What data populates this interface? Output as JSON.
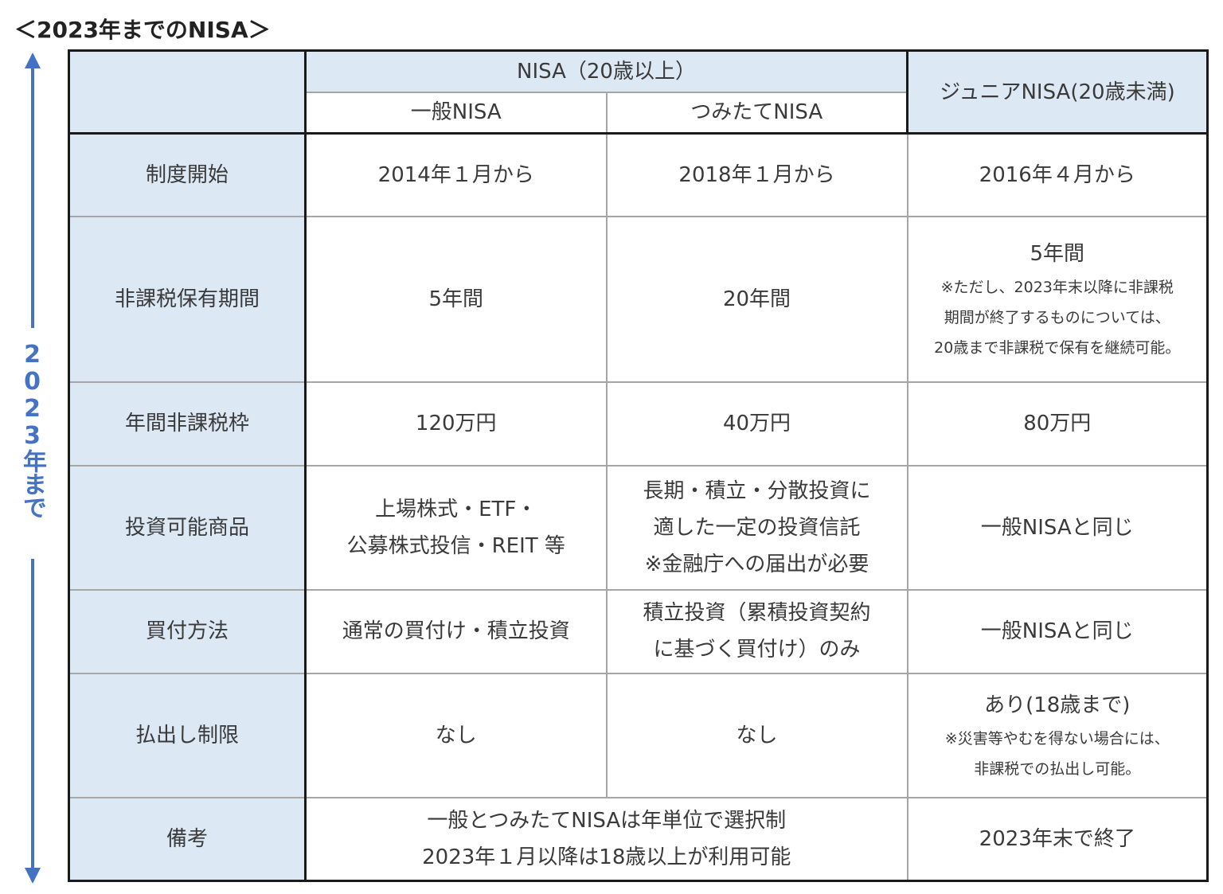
{
  "title": "＜2023年までのNISA＞",
  "side_label": "2023年まで",
  "accent": "#4472c4",
  "header": {
    "nisa": "NISA（20歳以上）",
    "general": "一般NISA",
    "tsumitate": "つみたてNISA",
    "junior": "ジュニアNISA(20歳未満)"
  },
  "rows": [
    {
      "label": "制度開始",
      "general": "2014年１月から",
      "tsumitate": "2018年１月から",
      "junior": "2016年４月から"
    },
    {
      "label": "非課税保有期間",
      "general": "5年間",
      "tsumitate": "20年間",
      "junior": "5年間",
      "junior_note": [
        "※ただし、2023年末以降に非課税",
        "期間が終了するものについては、",
        "20歳まで非課税で保有を継続可能。"
      ]
    },
    {
      "label": "年間非課税枠",
      "general": "120万円",
      "tsumitate": "40万円",
      "junior": "80万円"
    },
    {
      "label": "投資可能商品",
      "general": [
        "上場株式・ETF・",
        "公募株式投信・REIT 等"
      ],
      "tsumitate": [
        "長期・積立・分散投資に",
        "適した一定の投資信託",
        "※金融庁への届出が必要"
      ],
      "junior": "一般NISAと同じ"
    },
    {
      "label": "買付方法",
      "general": "通常の買付け・積立投資",
      "tsumitate": [
        "積立投資（累積投資契約",
        "に基づく買付け）のみ"
      ],
      "junior": "一般NISAと同じ"
    },
    {
      "label": "払出し制限",
      "general": "なし",
      "tsumitate": "なし",
      "junior": "あり(18歳まで)",
      "junior_note": [
        "※災害等やむを得ない場合には、",
        "非課税での払出し可能。"
      ]
    },
    {
      "label": "備考",
      "combined": [
        "一般とつみたてNISAは年単位で選択制",
        "2023年１月以降は18歳以上が利用可能"
      ],
      "junior": "2023年末で終了"
    }
  ]
}
